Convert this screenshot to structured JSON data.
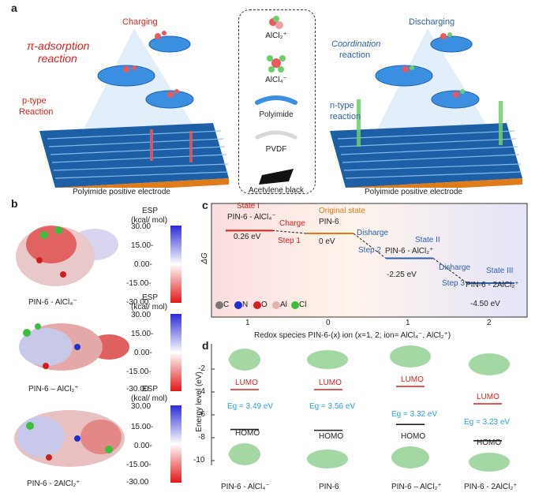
{
  "panels": {
    "a": "a",
    "b": "b",
    "c": "c",
    "d": "d"
  },
  "panel_a": {
    "charging_title": "Charging",
    "discharging_title": "Discharging",
    "pi_adsorption": "π-adsorption",
    "reaction": "reaction",
    "p_type": "p-type",
    "p_type_reaction": "Reaction",
    "coordination": "Coordination",
    "coordination_reaction": "reaction",
    "n_type": "n-type",
    "n_type_reaction": "reaction",
    "left_caption": "Polyimide positive electrode",
    "right_caption": "Polyimide positive electrode"
  },
  "legend": {
    "alcl2": "AlCl₂⁺",
    "alcl4": "AlCl₄⁻",
    "polyimide": "Polyimide",
    "pvdf": "PVDF",
    "acetylene": "Acetylene black"
  },
  "panel_b": {
    "esp_title": "ESP",
    "esp_unit": "(kcal/ mol)",
    "ticks": [
      "30.00",
      "15.00-",
      "0.00-",
      "-15.00-",
      "-30.00"
    ],
    "mol1": "PIN-6 - AlCl₄⁻",
    "mol2": "PIN-6 – AlCl₂⁺",
    "mol3": "PIN-6 - 2AlCl₂⁺"
  },
  "panel_c": {
    "ylabel": "ΔG",
    "xlabel": "Redox species PIN-6-(x) ion (x=1, 2; ion= AlCl₄⁻, AlCl₂⁺)",
    "xticks": [
      "1",
      "0",
      "1",
      "2"
    ],
    "state1": "State I",
    "state1_species": "PIN-6 - AlCl₄⁻",
    "state1_energy": "0.26 eV",
    "charge": "Charge",
    "step1": "Step 1",
    "original": "Original state",
    "original_species": "PIN-6",
    "original_energy": "0 eV",
    "disharge1": "Disharge",
    "step2": "Step 2",
    "state2": "State II",
    "state2_species": "PIN-6 - AlCl₂⁺",
    "state2_energy": "-2.25 eV",
    "disharge2": "Disharge",
    "step3": "Step 3",
    "state3": "State III",
    "state3_species": "PIN-6 - 2AlCl₂⁺",
    "state3_energy": "-4.50 eV",
    "atoms": [
      "C",
      "N",
      "O",
      "Al",
      "Cl"
    ],
    "atom_colors": [
      "#777777",
      "#1f2fd6",
      "#d42020",
      "#e8b0b0",
      "#3bbf3b"
    ]
  },
  "panel_d": {
    "ylabel": "Energy level (eV)",
    "yticks": [
      "-2",
      "-4",
      "-6",
      "-8",
      "-10"
    ],
    "lumo": "LUMO",
    "homo": "HOMO",
    "columns": [
      {
        "gap": "Eg = 3.49 eV",
        "name": "PIN-6 - AlCl₄⁻"
      },
      {
        "gap": "Eg = 3.56 eV",
        "name": "PIN-6"
      },
      {
        "gap": "Eg = 3.32 eV",
        "name": "PIN-6 – AlCl₂⁺"
      },
      {
        "gap": "Eg = 3.23 eV",
        "name": "PIN-6 - 2AlCl₂⁺"
      }
    ]
  },
  "chart_data": [
    {
      "type": "line",
      "title": "",
      "xlabel": "Redox species PIN-6-(x) ion (x=1, 2; ion= AlCl₄⁻, AlCl₂⁺)",
      "ylabel": "ΔG",
      "categories": [
        "1",
        "0",
        "1",
        "2"
      ],
      "series": [
        {
          "values": [
            0.26,
            0,
            -2.25,
            -4.5
          ]
        }
      ]
    },
    {
      "type": "bar",
      "title": "",
      "ylabel": "Energy level (eV)",
      "categories": [
        "PIN-6 - AlCl₄⁻",
        "PIN-6",
        "PIN-6 – AlCl₂⁺",
        "PIN-6 - 2AlCl₂⁺"
      ],
      "band_gap_eV": [
        3.49,
        3.56,
        3.32,
        3.23
      ]
    }
  ]
}
